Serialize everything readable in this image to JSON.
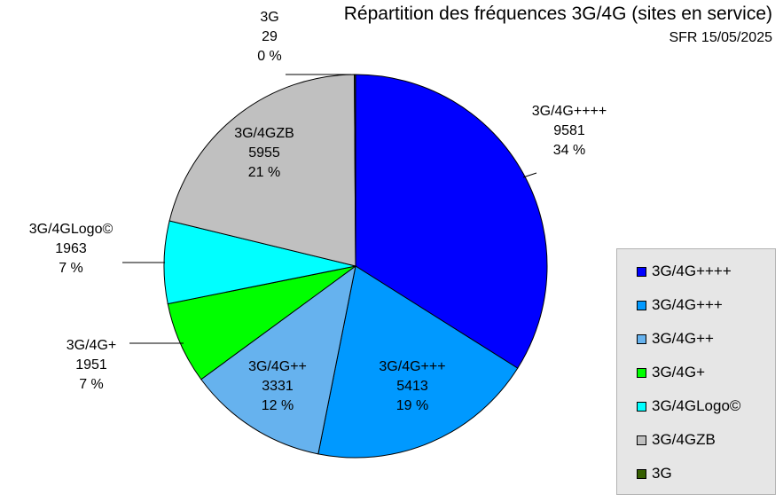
{
  "chart_data": {
    "type": "pie",
    "title": "Répartition des fréquences 3G/4G (sites en service)",
    "subtitle": "SFR 15/05/2025",
    "slices": [
      {
        "label": "3G/4G++++",
        "value": 9581,
        "percent": "34 %",
        "color": "#0000ff"
      },
      {
        "label": "3G/4G+++",
        "value": 5413,
        "percent": "19 %",
        "color": "#0099ff"
      },
      {
        "label": "3G/4G++",
        "value": 3331,
        "percent": "12 %",
        "color": "#66b2ee"
      },
      {
        "label": "3G/4G+",
        "value": 1951,
        "percent": "7 %",
        "color": "#00ff00"
      },
      {
        "label": "3G/4GLogo©",
        "value": 1963,
        "percent": "7 %",
        "color": "#00ffff"
      },
      {
        "label": "3G/4GZB",
        "value": 5955,
        "percent": "21 %",
        "color": "#c0c0c0"
      },
      {
        "label": "3G",
        "value": 29,
        "percent": "0 %",
        "color": "#355e00"
      }
    ],
    "legend_placement": "right"
  }
}
